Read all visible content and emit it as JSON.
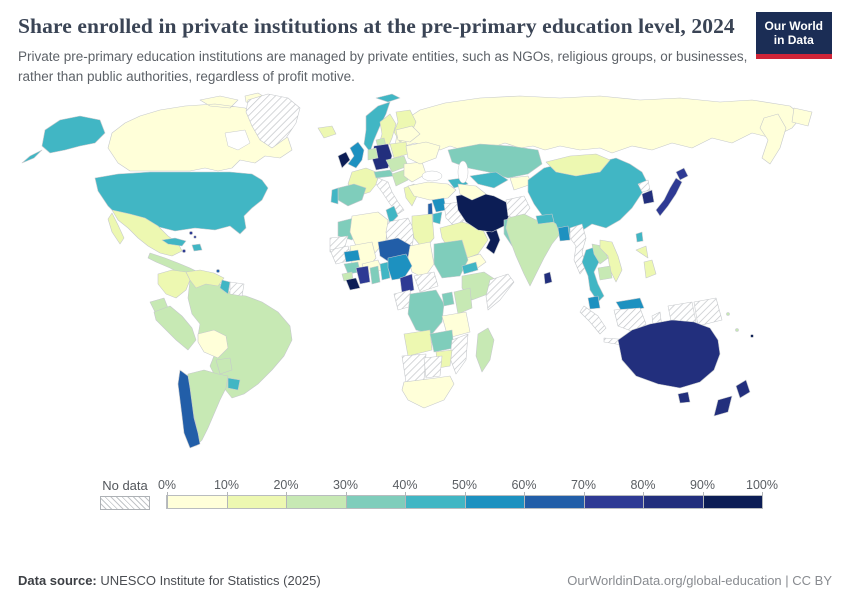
{
  "header": {
    "title": "Share enrolled in private institutions at the pre-primary education level, 2024",
    "subtitle": "Private pre-primary education institutions are managed by private entities, such as NGOs, religious groups, or businesses, rather than public authorities, regardless of profit motive.",
    "logo": {
      "line1": "Our World",
      "line2": "in Data",
      "bg_color": "#1b2d55",
      "accent_color": "#cf2437"
    }
  },
  "legend": {
    "no_data_label": "No data",
    "ticks": [
      "0%",
      "10%",
      "20%",
      "30%",
      "40%",
      "50%",
      "60%",
      "70%",
      "80%",
      "90%",
      "100%"
    ],
    "colors": [
      "#ffffd9",
      "#edf8b1",
      "#c7e9b4",
      "#7fcdbb",
      "#41b6c4",
      "#1d91c0",
      "#225ea8",
      "#2e3a94",
      "#222f7d",
      "#0c1d55"
    ]
  },
  "footer": {
    "source_label": "Data source:",
    "source_value": " UNESCO Institute for Statistics (2025)",
    "right": "OurWorldinData.org/global-education | CC BY"
  },
  "chart_data": {
    "type": "heatmap",
    "subtype": "choropleth-world-map",
    "title": "Share enrolled in private institutions at the pre-primary education level, 2024",
    "unit": "%",
    "bins": [
      "0-10%",
      "10-20%",
      "20-30%",
      "30-40%",
      "40-50%",
      "50-60%",
      "60-70%",
      "70-80%",
      "80-90%",
      "90-100%"
    ],
    "no_data_value": -1,
    "countries": [
      {
        "id": "canada",
        "name": "Canada",
        "bin": 0,
        "range": "0-10%"
      },
      {
        "id": "usa",
        "name": "United States",
        "bin": 4,
        "range": "40-50%"
      },
      {
        "id": "greenland",
        "name": "Greenland",
        "bin": -1,
        "range": "No data"
      },
      {
        "id": "mexico",
        "name": "Mexico",
        "bin": 1,
        "range": "10-20%"
      },
      {
        "id": "centralamerica",
        "name": "Guatemala",
        "bin": 2,
        "range": "20-30%"
      },
      {
        "id": "cuba",
        "name": "Cuba",
        "bin": 4,
        "range": "40-50%"
      },
      {
        "id": "hispaniola",
        "name": "Dominican Republic",
        "bin": 4,
        "range": "40-50%"
      },
      {
        "id": "jamaica",
        "name": "Jamaica",
        "bin": 7,
        "range": "70-80%"
      },
      {
        "id": "bahamas",
        "name": "Bahamas",
        "bin": 7,
        "range": "70-80%"
      },
      {
        "id": "trinidad",
        "name": "Trinidad and Tobago",
        "bin": 6,
        "range": "60-70%"
      },
      {
        "id": "colombia",
        "name": "Colombia",
        "bin": 1,
        "range": "10-20%"
      },
      {
        "id": "venezuela",
        "name": "Venezuela",
        "bin": 1,
        "range": "10-20%"
      },
      {
        "id": "guyana",
        "name": "Guyana",
        "bin": 4,
        "range": "40-50%"
      },
      {
        "id": "suriname",
        "name": "Suriname",
        "bin": -1,
        "range": "No data"
      },
      {
        "id": "ecuador",
        "name": "Ecuador",
        "bin": 2,
        "range": "20-30%"
      },
      {
        "id": "peru",
        "name": "Peru",
        "bin": 2,
        "range": "20-30%"
      },
      {
        "id": "brazil",
        "name": "Brazil",
        "bin": 2,
        "range": "20-30%"
      },
      {
        "id": "bolivia",
        "name": "Bolivia",
        "bin": 0,
        "range": "0-10%"
      },
      {
        "id": "paraguay",
        "name": "Paraguay",
        "bin": 2,
        "range": "20-30%"
      },
      {
        "id": "chile",
        "name": "Chile",
        "bin": 6,
        "range": "60-70%"
      },
      {
        "id": "argentina",
        "name": "Argentina",
        "bin": 2,
        "range": "20-30%"
      },
      {
        "id": "uruguay",
        "name": "Uruguay",
        "bin": 4,
        "range": "40-50%"
      },
      {
        "id": "iceland",
        "name": "Iceland",
        "bin": 1,
        "range": "10-20%"
      },
      {
        "id": "norway",
        "name": "Norway",
        "bin": 4,
        "range": "40-50%"
      },
      {
        "id": "svalbard",
        "name": "Svalbard",
        "bin": 4,
        "range": "40-50%"
      },
      {
        "id": "sweden",
        "name": "Sweden",
        "bin": 1,
        "range": "10-20%"
      },
      {
        "id": "finland",
        "name": "Finland",
        "bin": 1,
        "range": "10-20%"
      },
      {
        "id": "denmark",
        "name": "Denmark",
        "bin": 2,
        "range": "20-30%"
      },
      {
        "id": "uk",
        "name": "United Kingdom",
        "bin": 5,
        "range": "50-60%"
      },
      {
        "id": "ireland",
        "name": "Ireland",
        "bin": 9,
        "range": "90-100%"
      },
      {
        "id": "france",
        "name": "France",
        "bin": 1,
        "range": "10-20%"
      },
      {
        "id": "germany",
        "name": "Germany",
        "bin": 8,
        "range": "80-90%"
      },
      {
        "id": "benelux",
        "name": "Netherlands",
        "bin": 2,
        "range": "20-30%"
      },
      {
        "id": "spain",
        "name": "Spain",
        "bin": 3,
        "range": "30-40%"
      },
      {
        "id": "portugal",
        "name": "Portugal",
        "bin": 4,
        "range": "40-50%"
      },
      {
        "id": "italy",
        "name": "Italy",
        "bin": -1,
        "range": "No data"
      },
      {
        "id": "alpine",
        "name": "Austria",
        "bin": 3,
        "range": "30-40%"
      },
      {
        "id": "poland",
        "name": "Poland",
        "bin": 1,
        "range": "10-20%"
      },
      {
        "id": "czech-hungary",
        "name": "Hungary",
        "bin": 2,
        "range": "20-30%"
      },
      {
        "id": "balkans",
        "name": "Croatia",
        "bin": 2,
        "range": "20-30%"
      },
      {
        "id": "greece",
        "name": "Greece",
        "bin": 1,
        "range": "10-20%"
      },
      {
        "id": "romania-bulgaria",
        "name": "Romania",
        "bin": 0,
        "range": "0-10%"
      },
      {
        "id": "ukraine",
        "name": "Ukraine",
        "bin": 0,
        "range": "0-10%"
      },
      {
        "id": "belarus-baltics",
        "name": "Belarus",
        "bin": 0,
        "range": "0-10%"
      },
      {
        "id": "russia",
        "name": "Russia",
        "bin": 0,
        "range": "0-10%"
      },
      {
        "id": "russia-east",
        "name": "Russia (Far East)",
        "bin": 0,
        "range": "0-10%"
      },
      {
        "id": "turkey",
        "name": "Türkiye",
        "bin": 0,
        "range": "0-10%"
      },
      {
        "id": "syria",
        "name": "Syria",
        "bin": 5,
        "range": "50-60%"
      },
      {
        "id": "levant",
        "name": "Lebanon",
        "bin": 6,
        "range": "60-70%"
      },
      {
        "id": "jordan",
        "name": "Jordan",
        "bin": 4,
        "range": "40-50%"
      },
      {
        "id": "iraq",
        "name": "Iraq",
        "bin": -1,
        "range": "No data"
      },
      {
        "id": "saudi",
        "name": "Saudi Arabia",
        "bin": 1,
        "range": "10-20%"
      },
      {
        "id": "yemen",
        "name": "Yemen",
        "bin": 0,
        "range": "0-10%"
      },
      {
        "id": "oman",
        "name": "Oman",
        "bin": 9,
        "range": "90-100%"
      },
      {
        "id": "iran",
        "name": "Iran",
        "bin": 9,
        "range": "90-100%"
      },
      {
        "id": "afghanistan",
        "name": "Afghanistan",
        "bin": -1,
        "range": "No data"
      },
      {
        "id": "pakistan",
        "name": "Pakistan",
        "bin": 3,
        "range": "30-40%"
      },
      {
        "id": "caucasus",
        "name": "Azerbaijan",
        "bin": 4,
        "range": "40-50%"
      },
      {
        "id": "kazakhstan",
        "name": "Kazakhstan",
        "bin": 3,
        "range": "30-40%"
      },
      {
        "id": "uzbekistan",
        "name": "Uzbekistan",
        "bin": 4,
        "range": "40-50%"
      },
      {
        "id": "turkmenistan",
        "name": "Turkmenistan",
        "bin": 0,
        "range": "0-10%"
      },
      {
        "id": "kyrgyz",
        "name": "Kyrgyzstan",
        "bin": 0,
        "range": "0-10%"
      },
      {
        "id": "mongolia",
        "name": "Mongolia",
        "bin": 1,
        "range": "10-20%"
      },
      {
        "id": "china",
        "name": "China",
        "bin": 4,
        "range": "40-50%"
      },
      {
        "id": "nkorea",
        "name": "North Korea",
        "bin": -1,
        "range": "No data"
      },
      {
        "id": "skorea",
        "name": "South Korea",
        "bin": 8,
        "range": "80-90%"
      },
      {
        "id": "japan",
        "name": "Japan",
        "bin": 7,
        "range": "70-80%"
      },
      {
        "id": "taiwan",
        "name": "Taiwan",
        "bin": 4,
        "range": "40-50%"
      },
      {
        "id": "india",
        "name": "India",
        "bin": 2,
        "range": "20-30%"
      },
      {
        "id": "nepal",
        "name": "Nepal",
        "bin": 4,
        "range": "40-50%"
      },
      {
        "id": "bangladesh",
        "name": "Bangladesh",
        "bin": 5,
        "range": "50-60%"
      },
      {
        "id": "srilanka",
        "name": "Sri Lanka",
        "bin": 8,
        "range": "80-90%"
      },
      {
        "id": "myanmar",
        "name": "Myanmar",
        "bin": -1,
        "range": "No data"
      },
      {
        "id": "thailand",
        "name": "Thailand",
        "bin": 4,
        "range": "40-50%"
      },
      {
        "id": "laos",
        "name": "Laos",
        "bin": 2,
        "range": "20-30%"
      },
      {
        "id": "cambodia",
        "name": "Cambodia",
        "bin": 2,
        "range": "20-30%"
      },
      {
        "id": "vietnam",
        "name": "Vietnam",
        "bin": 1,
        "range": "10-20%"
      },
      {
        "id": "malaysia",
        "name": "Malaysia",
        "bin": 5,
        "range": "50-60%"
      },
      {
        "id": "indonesia",
        "name": "Indonesia",
        "bin": -1,
        "range": "No data"
      },
      {
        "id": "easttimor",
        "name": "Timor-Leste",
        "bin": 4,
        "range": "40-50%"
      },
      {
        "id": "philippines",
        "name": "Philippines",
        "bin": 1,
        "range": "10-20%"
      },
      {
        "id": "png",
        "name": "Papua New Guinea",
        "bin": -1,
        "range": "No data"
      },
      {
        "id": "solomon",
        "name": "Solomon Islands",
        "bin": 2,
        "range": "20-30%"
      },
      {
        "id": "vanuatu",
        "name": "Vanuatu",
        "bin": 2,
        "range": "20-30%"
      },
      {
        "id": "fiji",
        "name": "Fiji",
        "bin": 9,
        "range": "90-100%"
      },
      {
        "id": "australia",
        "name": "Australia",
        "bin": 8,
        "range": "80-90%"
      },
      {
        "id": "nz",
        "name": "New Zealand",
        "bin": 8,
        "range": "80-90%"
      },
      {
        "id": "morocco",
        "name": "Morocco",
        "bin": 3,
        "range": "30-40%"
      },
      {
        "id": "wsahara",
        "name": "Western Sahara",
        "bin": -1,
        "range": "No data"
      },
      {
        "id": "algeria",
        "name": "Algeria",
        "bin": 0,
        "range": "0-10%"
      },
      {
        "id": "tunisia",
        "name": "Tunisia",
        "bin": 4,
        "range": "40-50%"
      },
      {
        "id": "libya",
        "name": "Libya",
        "bin": -1,
        "range": "No data"
      },
      {
        "id": "egypt",
        "name": "Egypt",
        "bin": 1,
        "range": "10-20%"
      },
      {
        "id": "mauritania",
        "name": "Mauritania",
        "bin": -1,
        "range": "No data"
      },
      {
        "id": "mali",
        "name": "Mali",
        "bin": 0,
        "range": "0-10%"
      },
      {
        "id": "burkina",
        "name": "Burkina Faso",
        "bin": 0,
        "range": "0-10%"
      },
      {
        "id": "niger",
        "name": "Niger",
        "bin": 6,
        "range": "60-70%"
      },
      {
        "id": "chad",
        "name": "Chad",
        "bin": 0,
        "range": "0-10%"
      },
      {
        "id": "sudan",
        "name": "Sudan",
        "bin": 3,
        "range": "30-40%"
      },
      {
        "id": "eritrea",
        "name": "Eritrea",
        "bin": 4,
        "range": "40-50%"
      },
      {
        "id": "ethiopia",
        "name": "Ethiopia",
        "bin": 2,
        "range": "20-30%"
      },
      {
        "id": "somalia",
        "name": "Somalia",
        "bin": -1,
        "range": "No data"
      },
      {
        "id": "senegal",
        "name": "Senegal",
        "bin": 5,
        "range": "50-60%"
      },
      {
        "id": "guinea",
        "name": "Guinea",
        "bin": 3,
        "range": "30-40%"
      },
      {
        "id": "sierraleone",
        "name": "Sierra Leone",
        "bin": 2,
        "range": "20-30%"
      },
      {
        "id": "liberia",
        "name": "Liberia",
        "bin": 9,
        "range": "90-100%"
      },
      {
        "id": "civ",
        "name": "Cote d'Ivoire",
        "bin": 7,
        "range": "70-80%"
      },
      {
        "id": "ghana",
        "name": "Ghana",
        "bin": 3,
        "range": "30-40%"
      },
      {
        "id": "togobenin",
        "name": "Benin",
        "bin": 4,
        "range": "40-50%"
      },
      {
        "id": "nigeria",
        "name": "Nigeria",
        "bin": 5,
        "range": "50-60%"
      },
      {
        "id": "cameroon",
        "name": "Cameroon",
        "bin": 7,
        "range": "70-80%"
      },
      {
        "id": "car",
        "name": "Central African Republic",
        "bin": -1,
        "range": "No data"
      },
      {
        "id": "congogabon",
        "name": "Congo",
        "bin": -1,
        "range": "No data"
      },
      {
        "id": "drc",
        "name": "Democratic Republic of Congo",
        "bin": 3,
        "range": "30-40%"
      },
      {
        "id": "uganda",
        "name": "Uganda",
        "bin": 3,
        "range": "30-40%"
      },
      {
        "id": "kenya",
        "name": "Kenya",
        "bin": 2,
        "range": "20-30%"
      },
      {
        "id": "tanzania",
        "name": "Tanzania",
        "bin": 0,
        "range": "0-10%"
      },
      {
        "id": "angola",
        "name": "Angola",
        "bin": 1,
        "range": "10-20%"
      },
      {
        "id": "zambia",
        "name": "Zambia",
        "bin": 3,
        "range": "30-40%"
      },
      {
        "id": "mozambique",
        "name": "Mozambique",
        "bin": -1,
        "range": "No data"
      },
      {
        "id": "zimbabwe",
        "name": "Zimbabwe",
        "bin": 1,
        "range": "10-20%"
      },
      {
        "id": "namibia",
        "name": "Namibia",
        "bin": -1,
        "range": "No data"
      },
      {
        "id": "botswana",
        "name": "Botswana",
        "bin": -1,
        "range": "No data"
      },
      {
        "id": "southafrica",
        "name": "South Africa",
        "bin": 0,
        "range": "0-10%"
      },
      {
        "id": "madagascar",
        "name": "Madagascar",
        "bin": 2,
        "range": "20-30%"
      }
    ]
  }
}
